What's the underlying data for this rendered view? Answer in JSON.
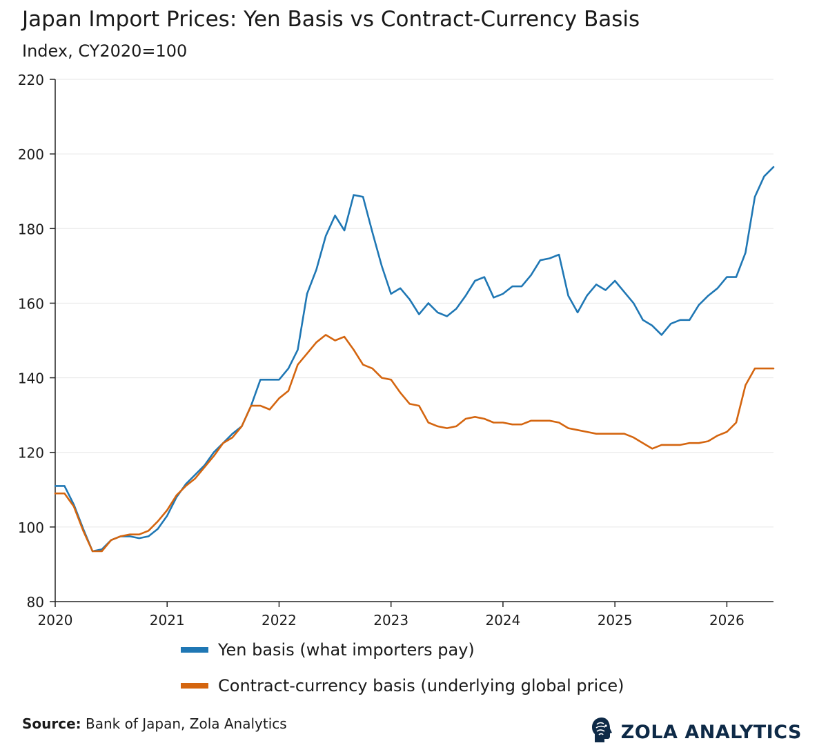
{
  "header": {
    "title": "Japan Import Prices: Yen Basis vs Contract-Currency Basis",
    "subtitle": "Index, CY2020=100"
  },
  "legend": {
    "items": [
      {
        "label": "Yen basis (what importers pay)",
        "color": "#1f77b4"
      },
      {
        "label": "Contract-currency basis (underlying global price)",
        "color": "#d4650f"
      }
    ]
  },
  "footer": {
    "source_label": "Source:",
    "source_text": " Bank of Japan, Zola Analytics",
    "brand": "ZOLA ANALYTICS",
    "brand_icon": "head-profile-icon"
  },
  "chart_data": {
    "type": "line",
    "title": "Japan Import Prices: Yen Basis vs Contract-Currency Basis",
    "subtitle": "Index, CY2020=100",
    "xlabel": "",
    "ylabel": "",
    "x_start": "2020-01",
    "x_frequency": "monthly",
    "xlim": [
      "2020-01",
      "2026-06"
    ],
    "x_ticks": [
      "2020",
      "2021",
      "2022",
      "2023",
      "2024",
      "2025",
      "2026"
    ],
    "ylim": [
      80,
      220
    ],
    "y_ticks": [
      80,
      100,
      120,
      140,
      160,
      180,
      200,
      220
    ],
    "grid": "horizontal",
    "legend_position": "bottom",
    "series": [
      {
        "name": "Yen basis (what importers pay)",
        "color": "#1f77b4",
        "values": [
          111,
          111,
          106,
          99.5,
          93.5,
          94,
          96.5,
          97.5,
          97.5,
          97,
          97.5,
          99.5,
          103,
          108,
          111.5,
          114,
          116.5,
          120,
          122.5,
          125,
          127,
          132.5,
          139.5,
          139.5,
          139.5,
          142.5,
          147.5,
          162.5,
          169,
          178,
          183.5,
          179.5,
          189,
          188.5,
          179,
          170,
          162.5,
          164,
          161,
          157,
          160,
          157.5,
          156.5,
          158.5,
          162,
          166,
          167,
          161.5,
          162.5,
          164.5,
          164.5,
          167.5,
          171.5,
          172,
          173,
          162,
          157.5,
          162,
          165,
          163.5,
          166,
          163,
          160,
          155.5,
          154,
          151.5,
          154.5,
          155.5,
          155.5,
          159.5,
          162,
          164,
          167,
          167,
          173.5,
          188.5,
          194,
          196.5
        ]
      },
      {
        "name": "Contract-currency basis (underlying global price)",
        "color": "#d4650f",
        "values": [
          109,
          109,
          105.5,
          99,
          93.5,
          93.5,
          96.5,
          97.5,
          98,
          98,
          99,
          101.5,
          104.5,
          108.5,
          111,
          113,
          116,
          119,
          122.5,
          124,
          127,
          132.5,
          132.5,
          131.5,
          134.5,
          136.5,
          143.5,
          146.5,
          149.5,
          151.5,
          150,
          151,
          147.5,
          143.5,
          142.5,
          140,
          139.5,
          136,
          133,
          132.5,
          128,
          127,
          126.5,
          127,
          129,
          129.5,
          129,
          128,
          128,
          127.5,
          127.5,
          128.5,
          128.5,
          128.5,
          128,
          126.5,
          126,
          125.5,
          125,
          125,
          125,
          125,
          124,
          122.5,
          121,
          122,
          122,
          122,
          122.5,
          122.5,
          123,
          124.5,
          125.5,
          128,
          138,
          142.5,
          142.5,
          142.5
        ]
      }
    ]
  }
}
